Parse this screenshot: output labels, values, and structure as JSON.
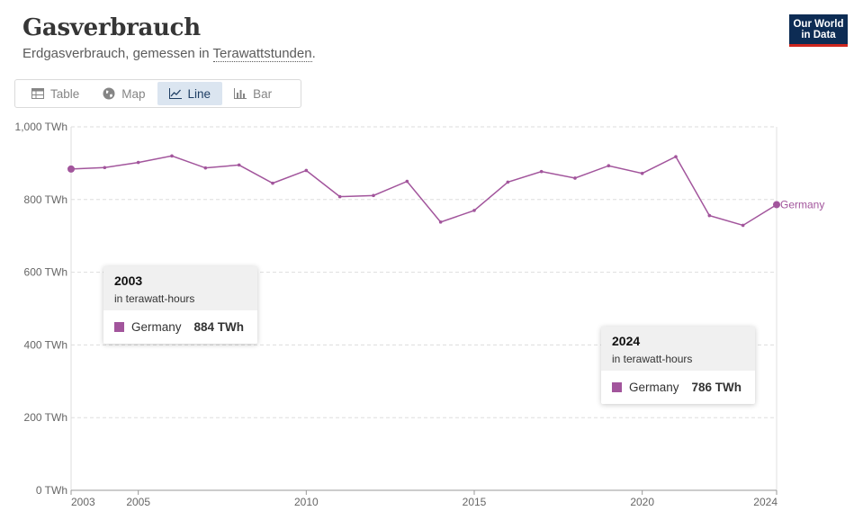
{
  "header": {
    "title": "Gasverbrauch",
    "subtitle_prefix": "Erdgasverbrauch, gemessen in ",
    "subtitle_link": "Terawattstunden",
    "subtitle_suffix": "."
  },
  "logo": {
    "line1": "Our World",
    "line2": "in Data"
  },
  "tabs": [
    {
      "label": "Table",
      "icon": "table-icon",
      "active": false
    },
    {
      "label": "Map",
      "icon": "globe-icon",
      "active": false
    },
    {
      "label": "Line",
      "icon": "line-chart-icon",
      "active": true
    },
    {
      "label": "Bar",
      "icon": "bar-chart-icon",
      "active": false
    }
  ],
  "colors": {
    "series": "#a2559c",
    "logo_bg": "#0d2c54",
    "logo_accent": "#ce261e",
    "active_tab_bg": "#dbe5f0"
  },
  "tooltips": [
    {
      "year": "2003",
      "unit": "in terawatt-hours",
      "entity": "Germany",
      "value": "884 TWh"
    },
    {
      "year": "2024",
      "unit": "in terawatt-hours",
      "entity": "Germany",
      "value": "786 TWh"
    }
  ],
  "chart_data": {
    "type": "line",
    "x": [
      2003,
      2004,
      2005,
      2006,
      2007,
      2008,
      2009,
      2010,
      2011,
      2012,
      2013,
      2014,
      2015,
      2016,
      2017,
      2018,
      2019,
      2020,
      2021,
      2022,
      2023,
      2024
    ],
    "series": [
      {
        "name": "Germany",
        "values": [
          884,
          888,
          902,
          920,
          887,
          895,
          845,
          880,
          808,
          811,
          850,
          738,
          770,
          848,
          877,
          859,
          893,
          872,
          918,
          756,
          729,
          786
        ]
      }
    ],
    "ylim": [
      0,
      1000
    ],
    "xlim": [
      2003,
      2024
    ],
    "y_ticks": [
      0,
      200,
      400,
      600,
      800,
      1000
    ],
    "y_tick_labels": [
      "0 TWh",
      "200 TWh",
      "400 TWh",
      "600 TWh",
      "800 TWh",
      "1,000 TWh"
    ],
    "x_ticks": [
      2003,
      2005,
      2010,
      2015,
      2020,
      2024
    ],
    "x_tick_labels": [
      "2003",
      "2005",
      "2010",
      "2015",
      "2020",
      "2024"
    ],
    "grid": true,
    "end_label": "Germany"
  }
}
